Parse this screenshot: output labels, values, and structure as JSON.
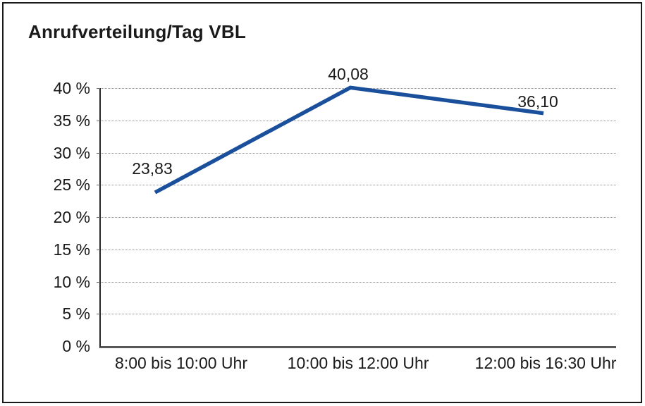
{
  "chart_data": {
    "type": "line",
    "title": "Anrufverteilung/Tag VBL",
    "categories": [
      "8:00 bis 10:00 Uhr",
      "10:00 bis 12:00 Uhr",
      "12:00 bis 16:30 Uhr"
    ],
    "values": [
      23.83,
      40.08,
      36.1
    ],
    "data_labels": [
      "23,83",
      "40,08",
      "36,10"
    ],
    "y_ticks": [
      "40 %",
      "35 %",
      "30 %",
      "25 %",
      "20 %",
      "15 %",
      "10 %",
      "5 %",
      "0 %"
    ],
    "ylabel": "",
    "xlabel": "",
    "ylim": [
      0,
      40
    ],
    "y_tick_step": 5,
    "grid": "horizontal-dotted",
    "legend": "none"
  },
  "colors": {
    "line": "#1a4f9c",
    "grid": "#8f8f8f",
    "y_axis": "#262626",
    "x_axis": "#595959",
    "border": "#1a1a1a",
    "text": "#1a1a1a",
    "background": "#ffffff"
  }
}
